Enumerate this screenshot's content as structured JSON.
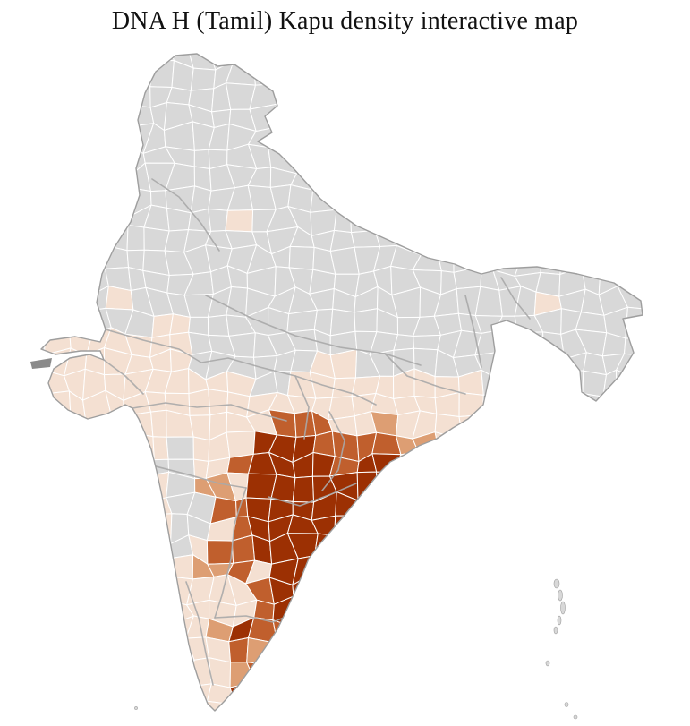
{
  "title": "DNA H (Tamil) Kapu density interactive map",
  "map": {
    "name": "india-district-choropleth",
    "region": "India",
    "colors": {
      "background": "#ffffff",
      "no_data": "#d8d8d8",
      "density_1": "#f4e0d2",
      "density_2": "#dd9e73",
      "density_3": "#c05f2d",
      "density_4": "#9c3003",
      "district_border": "#ffffff",
      "state_border": "#a9a9a9",
      "outline_border": "#9e9e9e",
      "dark_gray_district": "#8a8a8a"
    }
  }
}
